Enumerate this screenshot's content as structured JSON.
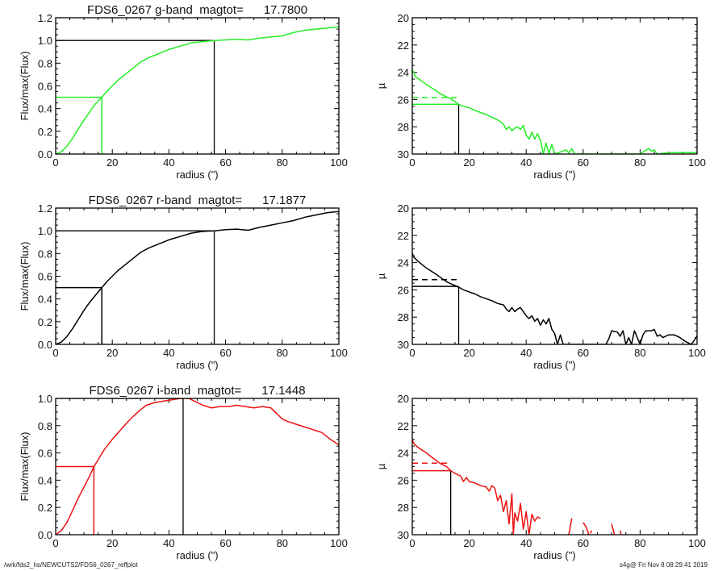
{
  "footer": {
    "path": "/wrk/fds2_hs/NEWCUTS2/FDS6_0267_reffplot",
    "stamp": "s4g@  Fri Nov  8 08:29:41 2019"
  },
  "chart_data": [
    {
      "id": "g-growth",
      "type": "line",
      "title": "FDS6_0267 g-band  magtot=      17.7800",
      "xlabel": "radius (\")",
      "ylabel": "Flux/max(Flux)",
      "xlim": [
        0,
        100
      ],
      "ylim": [
        0,
        1.2
      ],
      "xticks": [
        "0",
        "20",
        "40",
        "60",
        "80",
        "100"
      ],
      "yticks": [
        "0.0",
        "0.2",
        "0.4",
        "0.6",
        "0.8",
        "1.0",
        "1.2"
      ],
      "color": "#22ee22",
      "x": [
        0,
        2,
        4,
        6,
        8,
        10,
        12,
        14,
        16.3,
        18,
        20,
        22,
        24,
        26,
        28,
        30,
        33,
        36,
        40,
        44,
        48,
        52,
        56,
        60,
        64,
        68,
        72,
        76,
        80,
        84,
        88,
        92,
        96,
        100
      ],
      "y": [
        0,
        0.02,
        0.07,
        0.14,
        0.22,
        0.3,
        0.37,
        0.44,
        0.5,
        0.55,
        0.6,
        0.65,
        0.69,
        0.73,
        0.77,
        0.81,
        0.85,
        0.88,
        0.92,
        0.95,
        0.98,
        0.99,
        1.0,
        1.005,
        1.01,
        1.005,
        1.02,
        1.03,
        1.04,
        1.07,
        1.09,
        1.1,
        1.11,
        1.12
      ],
      "reff": 16.3,
      "rtot": 56,
      "half_level": 0.5,
      "total_level": 1.0
    },
    {
      "id": "g-profile",
      "type": "line",
      "xlabel": "radius (\")",
      "ylabel": "µ",
      "xlim": [
        0,
        100
      ],
      "ylim": [
        30,
        20
      ],
      "xticks": [
        "0",
        "20",
        "40",
        "60",
        "80",
        "100"
      ],
      "yticks": [
        "20",
        "22",
        "24",
        "26",
        "28",
        "30"
      ],
      "color": "#22ee22",
      "x": [
        0,
        0.5,
        1,
        3,
        5,
        8,
        10,
        12,
        14,
        16.3,
        18,
        20,
        22,
        24,
        26,
        28,
        30,
        32,
        33,
        34,
        35,
        36,
        37,
        38,
        39,
        40,
        41,
        42,
        43,
        44,
        45,
        46,
        47,
        48,
        49,
        50,
        54,
        55,
        56,
        57,
        72,
        80,
        83,
        84,
        85,
        86,
        90,
        91,
        100
      ],
      "y": [
        23.8,
        24.0,
        24.3,
        24.6,
        24.9,
        25.3,
        25.6,
        25.8,
        26.0,
        26.35,
        26.5,
        26.6,
        26.8,
        26.95,
        27.1,
        27.3,
        27.5,
        27.8,
        28.2,
        28.0,
        28.3,
        28.1,
        28.0,
        28.2,
        27.9,
        28.6,
        28.9,
        28.4,
        28.9,
        28.5,
        29.0,
        30.0,
        29.2,
        30.0,
        29.3,
        30.0,
        29.7,
        29.9,
        29.6,
        30.0,
        30.0,
        30.0,
        29.6,
        29.8,
        29.7,
        30.0,
        29.9,
        29.9,
        29.9
      ],
      "reff": 16.3,
      "mu_eff": 26.35,
      "mu_mean_eff": 25.85
    },
    {
      "id": "r-growth",
      "type": "line",
      "title": "FDS6_0267 r-band  magtot=      17.1877",
      "xlabel": "radius (\")",
      "ylabel": "Flux/max(Flux)",
      "xlim": [
        0,
        100
      ],
      "ylim": [
        0,
        1.2
      ],
      "xticks": [
        "0",
        "20",
        "40",
        "60",
        "80",
        "100"
      ],
      "yticks": [
        "0.0",
        "0.2",
        "0.4",
        "0.6",
        "0.8",
        "1.0",
        "1.2"
      ],
      "color": "#000000",
      "x": [
        0,
        2,
        4,
        6,
        8,
        10,
        12,
        14,
        16.3,
        18,
        20,
        22,
        24,
        26,
        28,
        30,
        33,
        36,
        40,
        44,
        48,
        52,
        56,
        60,
        64,
        68,
        72,
        76,
        80,
        84,
        88,
        92,
        96,
        100
      ],
      "y": [
        0,
        0.02,
        0.07,
        0.14,
        0.22,
        0.3,
        0.37,
        0.43,
        0.5,
        0.55,
        0.6,
        0.65,
        0.69,
        0.73,
        0.77,
        0.81,
        0.85,
        0.88,
        0.92,
        0.95,
        0.98,
        0.995,
        1.0,
        1.01,
        1.015,
        1.005,
        1.03,
        1.05,
        1.07,
        1.09,
        1.12,
        1.14,
        1.16,
        1.17
      ],
      "reff": 16.3,
      "rtot": 56,
      "half_level": 0.5,
      "total_level": 1.0
    },
    {
      "id": "r-profile",
      "type": "line",
      "xlabel": "radius (\")",
      "ylabel": "µ",
      "xlim": [
        0,
        100
      ],
      "ylim": [
        30,
        20
      ],
      "xticks": [
        "0",
        "20",
        "40",
        "60",
        "80",
        "100"
      ],
      "yticks": [
        "20",
        "22",
        "24",
        "26",
        "28",
        "30"
      ],
      "color": "#000000",
      "x": [
        0,
        0.5,
        2,
        5,
        8,
        10,
        12,
        14,
        16.3,
        18,
        20,
        22,
        24,
        26,
        28,
        30,
        32,
        33,
        34,
        35,
        36,
        37,
        38,
        39,
        40,
        41,
        42,
        43,
        44,
        45,
        46,
        47,
        48,
        49,
        50,
        51,
        52,
        53,
        55,
        57,
        60,
        68,
        69,
        70,
        72,
        73,
        74,
        75,
        76,
        77,
        78,
        80,
        81,
        82,
        84,
        85,
        86,
        87,
        88,
        90,
        92,
        94,
        96,
        98,
        100
      ],
      "y": [
        23.3,
        23.6,
        23.9,
        24.4,
        24.8,
        25.1,
        25.4,
        25.6,
        25.8,
        26.0,
        26.15,
        26.3,
        26.5,
        26.65,
        26.8,
        27.0,
        27.1,
        27.4,
        27.6,
        27.3,
        27.6,
        27.4,
        27.3,
        27.6,
        27.9,
        28.1,
        27.9,
        28.3,
        28.1,
        28.6,
        28.2,
        28.5,
        28.1,
        28.9,
        29.2,
        30.0,
        29.3,
        30.0,
        30.0,
        30.0,
        30.0,
        30.0,
        29.6,
        29.0,
        29.1,
        29.4,
        29.0,
        30.0,
        29.5,
        30.0,
        29.0,
        30.0,
        29.3,
        29.0,
        29.0,
        28.9,
        29.4,
        29.3,
        29.5,
        29.3,
        29.3,
        29.5,
        29.8,
        30.0,
        29.4
      ],
      "reff": 16.3,
      "mu_eff": 25.75,
      "mu_mean_eff": 25.25
    },
    {
      "id": "i-growth",
      "type": "line",
      "title": "FDS6_0267 i-band  magtot=      17.1448",
      "xlabel": "radius (\")",
      "ylabel": "Flux/max(Flux)",
      "xlim": [
        0,
        100
      ],
      "ylim": [
        0,
        1.0
      ],
      "xticks": [
        "0",
        "20",
        "40",
        "60",
        "80",
        "100"
      ],
      "yticks": [
        "0.0",
        "0.2",
        "0.4",
        "0.6",
        "0.8",
        "1.0"
      ],
      "color": "#ee1111",
      "x": [
        0,
        2,
        4,
        6,
        8,
        10,
        12,
        13.5,
        15,
        17,
        20,
        23,
        26,
        29,
        32,
        35,
        38,
        41,
        44,
        47,
        50,
        52,
        55,
        58,
        61,
        64,
        67,
        70,
        73,
        76,
        78,
        80,
        82,
        85,
        88,
        91,
        94,
        97,
        100
      ],
      "y": [
        0,
        0.03,
        0.09,
        0.18,
        0.27,
        0.35,
        0.43,
        0.5,
        0.55,
        0.62,
        0.7,
        0.77,
        0.84,
        0.9,
        0.95,
        0.97,
        0.98,
        0.99,
        1.0,
        1.0,
        0.97,
        0.95,
        0.93,
        0.94,
        0.94,
        0.95,
        0.94,
        0.93,
        0.94,
        0.93,
        0.89,
        0.85,
        0.83,
        0.81,
        0.79,
        0.77,
        0.75,
        0.7,
        0.66
      ],
      "reff": 13.5,
      "rtot": 45,
      "half_level": 0.5,
      "total_level": 1.0
    },
    {
      "id": "i-profile",
      "type": "line",
      "xlabel": "radius (\")",
      "ylabel": "µ",
      "xlim": [
        0,
        100
      ],
      "ylim": [
        30,
        20
      ],
      "xticks": [
        "0",
        "20",
        "40",
        "60",
        "80",
        "100"
      ],
      "yticks": [
        "20",
        "22",
        "24",
        "26",
        "28",
        "30"
      ],
      "color": "#ee1111",
      "x": [
        0,
        0.5,
        2,
        5,
        8,
        10,
        12,
        13.5,
        15,
        17,
        18,
        19,
        20,
        22,
        24,
        26,
        27,
        28,
        29,
        30,
        31,
        32,
        33,
        34,
        35,
        35.5,
        36,
        37,
        38,
        39,
        40,
        41,
        42,
        43,
        44,
        45
      ],
      "y": [
        23.0,
        23.3,
        23.6,
        24.0,
        24.5,
        24.8,
        25.0,
        25.3,
        25.5,
        25.7,
        26.1,
        25.8,
        26.1,
        26.2,
        26.4,
        26.5,
        26.8,
        26.4,
        26.6,
        27.5,
        27.1,
        28.3,
        27.5,
        29.2,
        27.0,
        30.0,
        28.4,
        29.0,
        27.7,
        29.6,
        28.3,
        30.0,
        28.5,
        29.0,
        28.7,
        28.8
      ],
      "extra_segments": [
        {
          "x": [
            55,
            56
          ],
          "y": [
            30.0,
            28.8
          ]
        },
        {
          "x": [
            60,
            61,
            62
          ],
          "y": [
            29.1,
            29.4,
            30.0
          ]
        },
        {
          "x": [
            62.5,
            63
          ],
          "y": [
            29.9,
            29.7
          ]
        },
        {
          "x": [
            70,
            71
          ],
          "y": [
            29.2,
            30.0
          ]
        },
        {
          "x": [
            73,
            73.3
          ],
          "y": [
            29.7,
            30.0
          ]
        }
      ],
      "reff": 13.5,
      "mu_eff": 25.3,
      "mu_mean_eff": 24.75
    }
  ]
}
